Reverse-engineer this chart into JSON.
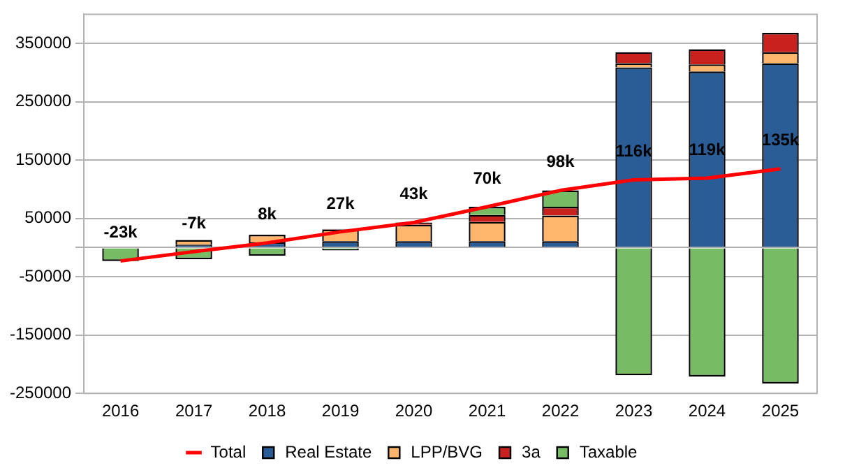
{
  "chart_data": {
    "type": "bar",
    "stacked": true,
    "categories": [
      "2016",
      "2017",
      "2018",
      "2019",
      "2020",
      "2021",
      "2022",
      "2023",
      "2024",
      "2025"
    ],
    "series": [
      {
        "name": "Real Estate",
        "color": "#2a5d96",
        "values": [
          0,
          5000,
          9000,
          11000,
          11000,
          11000,
          11000,
          309000,
          302000,
          316000
        ]
      },
      {
        "name": "LPP/BVG",
        "color": "#ffb66c",
        "values": [
          0,
          8000,
          13000,
          20000,
          28000,
          33000,
          44000,
          7000,
          12000,
          19000
        ]
      },
      {
        "name": "3a",
        "color": "#c9211e",
        "values": [
          0,
          0,
          0,
          1000,
          4000,
          12000,
          15000,
          19000,
          26000,
          33000
        ]
      },
      {
        "name": "Taxable",
        "color": "#77bc65",
        "values": [
          -23000,
          -20000,
          -14000,
          -5000,
          0,
          14000,
          28000,
          -219000,
          -221000,
          -233000
        ]
      },
      {
        "name": "Total",
        "type": "line",
        "color": "#ff0000",
        "values": [
          -23000,
          -7000,
          8000,
          27000,
          43000,
          70000,
          98000,
          116000,
          119000,
          135000
        ],
        "value_labels": [
          "-23k",
          "-7k",
          "8k",
          "27k",
          "43k",
          "70k",
          "98k",
          "116k",
          "119k",
          "135k"
        ]
      }
    ],
    "ylim": [
      -250000,
      400000
    ],
    "yticks": [
      -250000,
      -150000,
      -50000,
      {
        "value": 0,
        "label": null
      },
      50000,
      150000,
      250000,
      350000
    ],
    "grid": "y",
    "legend": "bottom",
    "marker": "none"
  }
}
